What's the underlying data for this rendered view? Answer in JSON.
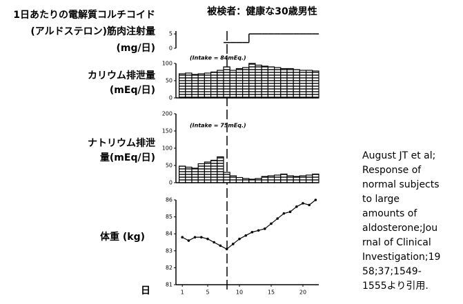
{
  "title": "被検者：健康な30歳男性",
  "note": [
    "August JT et al;",
    "Response of",
    "normal subjects",
    "to large",
    "amounts of",
    "aldosterone;Jou",
    "rnal of Clinical",
    "Investigation;19",
    "58;37;1549-",
    "1555より引用."
  ],
  "chart_data": [
    {
      "type": "step",
      "ylabel": [
        "1日あたりの電解質コルチコイド",
        "(アルドステロン)筋肉注射量",
        "(mg/日)"
      ],
      "x": [
        1,
        2,
        3,
        4,
        5,
        6,
        7,
        8,
        9,
        10,
        11,
        12,
        13,
        14,
        15,
        16,
        17,
        18,
        19,
        20,
        21,
        22
      ],
      "values": [
        null,
        null,
        null,
        null,
        null,
        null,
        null,
        2,
        2,
        2,
        2,
        5,
        5,
        5,
        5,
        5,
        5,
        5,
        5,
        5,
        5,
        5
      ],
      "color": "#000000",
      "xlim": [
        0,
        22.5
      ],
      "ylim": [
        0,
        6
      ],
      "yticks": [
        0,
        5
      ]
    },
    {
      "type": "bar",
      "ylabel": [
        "カリウム排泄量",
        "(mEq/日)"
      ],
      "annotation": "(Intake = 84mEq.)",
      "x": [
        1,
        2,
        3,
        4,
        5,
        6,
        7,
        8,
        9,
        10,
        11,
        12,
        13,
        14,
        15,
        16,
        17,
        18,
        19,
        20,
        21,
        22
      ],
      "values": [
        70,
        72,
        68,
        70,
        72,
        75,
        80,
        90,
        80,
        85,
        88,
        100,
        95,
        92,
        90,
        88,
        85,
        85,
        82,
        80,
        80,
        78
      ],
      "color": "#000000",
      "xlim": [
        0,
        22.5
      ],
      "ylim": [
        0,
        100
      ],
      "yticks": [
        0,
        50,
        100
      ]
    },
    {
      "type": "bar",
      "ylabel": [
        "ナトリウム排泄",
        "量(mEq/日)"
      ],
      "annotation": "(Intake = 75mEq.)",
      "x": [
        1,
        2,
        3,
        4,
        5,
        6,
        7,
        8,
        9,
        10,
        11,
        12,
        13,
        14,
        15,
        16,
        17,
        18,
        19,
        20,
        21,
        22
      ],
      "values": [
        48,
        45,
        42,
        55,
        60,
        65,
        75,
        30,
        20,
        15,
        12,
        10,
        12,
        18,
        20,
        22,
        25,
        20,
        18,
        20,
        22,
        25
      ],
      "color": "#000000",
      "xlim": [
        0,
        22.5
      ],
      "ylim": [
        0,
        200
      ],
      "yticks": [
        0,
        50,
        100,
        150,
        200
      ]
    },
    {
      "type": "line",
      "ylabel": [
        "体重 (kg)"
      ],
      "xlabel": "日",
      "x": [
        1,
        2,
        3,
        4,
        5,
        6,
        7,
        8,
        9,
        10,
        11,
        12,
        13,
        14,
        15,
        16,
        17,
        18,
        19,
        20,
        21,
        22
      ],
      "values": [
        83.8,
        83.6,
        83.8,
        83.8,
        83.7,
        83.5,
        83.3,
        83.1,
        83.4,
        83.7,
        83.9,
        84.1,
        84.2,
        84.3,
        84.6,
        84.9,
        85.2,
        85.3,
        85.6,
        85.8,
        85.7,
        86.0
      ],
      "color": "#000000",
      "xlim": [
        0,
        22.5
      ],
      "ylim": [
        81,
        86
      ],
      "yticks": [
        81,
        82,
        83,
        84,
        85,
        86
      ],
      "xticks": [
        1,
        5,
        10,
        15,
        20
      ]
    }
  ]
}
